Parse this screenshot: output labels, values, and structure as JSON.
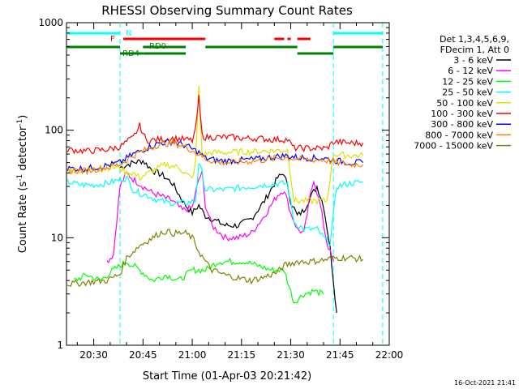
{
  "chart_data": {
    "type": "line",
    "title": "RHESSI Observing Summary Count Rates",
    "xlabel": "Start Time (01-Apr-03 20:21:42)",
    "ylabel_prefix": "Count Rate (s",
    "ylabel_exp": "-1",
    "ylabel_mid": " detector",
    "ylabel_exp2": "-1",
    "ylabel_suffix": ")",
    "y_scale": "log",
    "ylim": [
      1,
      1000
    ],
    "xlim_minutes": [
      21.7,
      120
    ],
    "x_ticks": [
      {
        "label": "20:30",
        "minute": 30
      },
      {
        "label": "20:45",
        "minute": 45
      },
      {
        "label": "21:00",
        "minute": 60
      },
      {
        "label": "21:15",
        "minute": 75
      },
      {
        "label": "21:30",
        "minute": 90
      },
      {
        "label": "21:45",
        "minute": 105
      },
      {
        "label": "22:00",
        "minute": 120
      }
    ],
    "y_ticks": [
      {
        "label": "1",
        "value": 1
      },
      {
        "label": "10",
        "value": 10
      },
      {
        "label": "100",
        "value": 100
      },
      {
        "label": "1000",
        "value": 1000
      }
    ],
    "legend_header": [
      "Det 1,3,4,5,6,9,",
      "FDecim 1, Att 0"
    ],
    "series": [
      {
        "name": "3 - 6 keV",
        "color": "#000000",
        "points": [
          [
            38,
            45
          ],
          [
            42,
            50
          ],
          [
            45,
            52
          ],
          [
            48,
            42
          ],
          [
            51,
            38
          ],
          [
            54,
            32
          ],
          [
            56,
            25
          ],
          [
            58,
            20
          ],
          [
            60,
            17
          ],
          [
            62,
            20
          ],
          [
            64,
            16
          ],
          [
            66,
            15
          ],
          [
            70,
            13
          ],
          [
            74,
            13
          ],
          [
            78,
            15
          ],
          [
            82,
            22
          ],
          [
            86,
            36
          ],
          [
            88,
            40
          ],
          [
            90,
            22
          ],
          [
            92,
            16
          ],
          [
            94,
            18
          ],
          [
            96,
            24
          ],
          [
            98,
            30
          ],
          [
            100,
            20
          ],
          [
            102,
            8
          ],
          [
            104,
            2
          ]
        ]
      },
      {
        "name": "6 - 12 keV",
        "color": "#ff00ff",
        "points": [
          [
            34,
            6
          ],
          [
            36,
            7
          ],
          [
            38,
            30
          ],
          [
            40,
            40
          ],
          [
            42,
            35
          ],
          [
            45,
            30
          ],
          [
            48,
            26
          ],
          [
            51,
            24
          ],
          [
            54,
            22
          ],
          [
            57,
            18
          ],
          [
            60,
            19
          ],
          [
            62,
            35
          ],
          [
            63,
            40
          ],
          [
            64,
            20
          ],
          [
            66,
            13
          ],
          [
            70,
            10
          ],
          [
            74,
            10
          ],
          [
            78,
            11
          ],
          [
            82,
            16
          ],
          [
            86,
            25
          ],
          [
            88,
            28
          ],
          [
            90,
            17
          ],
          [
            92,
            12
          ],
          [
            94,
            11
          ],
          [
            96,
            25
          ],
          [
            97,
            35
          ],
          [
            99,
            20
          ],
          [
            101,
            9
          ],
          [
            103,
            6
          ]
        ]
      },
      {
        "name": "12 - 25 keV",
        "color": "#00ff00",
        "points": [
          [
            24,
            4
          ],
          [
            28,
            4.5
          ],
          [
            32,
            4
          ],
          [
            36,
            5
          ],
          [
            40,
            6
          ],
          [
            44,
            5
          ],
          [
            48,
            4
          ],
          [
            52,
            4.5
          ],
          [
            56,
            4
          ],
          [
            60,
            5
          ],
          [
            64,
            5
          ],
          [
            68,
            6
          ],
          [
            72,
            6
          ],
          [
            76,
            6
          ],
          [
            80,
            5.5
          ],
          [
            84,
            5
          ],
          [
            88,
            5
          ],
          [
            91,
            2.5
          ],
          [
            94,
            3
          ],
          [
            97,
            3.2
          ],
          [
            100,
            3
          ]
        ]
      },
      {
        "name": "25 - 50 keV",
        "color": "#00ffff",
        "points": [
          [
            22,
            33
          ],
          [
            26,
            31
          ],
          [
            30,
            31
          ],
          [
            34,
            32
          ],
          [
            37,
            34
          ],
          [
            40,
            36
          ],
          [
            42,
            28
          ],
          [
            44,
            26
          ],
          [
            46,
            25
          ],
          [
            50,
            22
          ],
          [
            54,
            21
          ],
          [
            58,
            21
          ],
          [
            61,
            22
          ],
          [
            62,
            50
          ],
          [
            63,
            40
          ],
          [
            64,
            28
          ],
          [
            66,
            28
          ],
          [
            70,
            28
          ],
          [
            74,
            29
          ],
          [
            78,
            30
          ],
          [
            82,
            31
          ],
          [
            86,
            32
          ],
          [
            89,
            32
          ],
          [
            91,
            14
          ],
          [
            94,
            12
          ],
          [
            96,
            12
          ],
          [
            98,
            12
          ],
          [
            100,
            10
          ],
          [
            102,
            9
          ],
          [
            104,
            30
          ],
          [
            108,
            32
          ],
          [
            112,
            33
          ]
        ]
      },
      {
        "name": "50 - 100 keV",
        "color": "#e0e000",
        "points": [
          [
            22,
            42
          ],
          [
            28,
            43
          ],
          [
            34,
            45
          ],
          [
            38,
            45
          ],
          [
            40,
            40
          ],
          [
            42,
            40
          ],
          [
            44,
            36
          ],
          [
            48,
            42
          ],
          [
            52,
            48
          ],
          [
            56,
            45
          ],
          [
            60,
            35
          ],
          [
            61,
            50
          ],
          [
            62,
            250
          ],
          [
            63,
            60
          ],
          [
            64,
            60
          ],
          [
            66,
            62
          ],
          [
            70,
            62
          ],
          [
            74,
            63
          ],
          [
            78,
            63
          ],
          [
            82,
            64
          ],
          [
            86,
            65
          ],
          [
            89,
            65
          ],
          [
            91,
            22
          ],
          [
            95,
            22
          ],
          [
            99,
            22
          ],
          [
            101,
            22
          ],
          [
            103,
            60
          ],
          [
            108,
            58
          ],
          [
            112,
            58
          ]
        ]
      },
      {
        "name": "100 - 300 keV",
        "color": "#ff0000",
        "points": [
          [
            22,
            66
          ],
          [
            28,
            64
          ],
          [
            34,
            66
          ],
          [
            38,
            70
          ],
          [
            40,
            78
          ],
          [
            42,
            85
          ],
          [
            44,
            110
          ],
          [
            46,
            80
          ],
          [
            50,
            82
          ],
          [
            54,
            84
          ],
          [
            58,
            82
          ],
          [
            60,
            80
          ],
          [
            61,
            100
          ],
          [
            62,
            200
          ],
          [
            63,
            90
          ],
          [
            64,
            86
          ],
          [
            68,
            86
          ],
          [
            72,
            86
          ],
          [
            76,
            84
          ],
          [
            80,
            84
          ],
          [
            84,
            82
          ],
          [
            89,
            82
          ],
          [
            91,
            68
          ],
          [
            95,
            68
          ],
          [
            99,
            68
          ],
          [
            101,
            68
          ],
          [
            103,
            78
          ],
          [
            108,
            76
          ],
          [
            112,
            76
          ]
        ]
      },
      {
        "name": "300 - 800 keV",
        "color": "#0000ff",
        "points": [
          [
            22,
            44
          ],
          [
            28,
            44
          ],
          [
            34,
            47
          ],
          [
            38,
            50
          ],
          [
            42,
            60
          ],
          [
            46,
            68
          ],
          [
            50,
            76
          ],
          [
            54,
            78
          ],
          [
            58,
            72
          ],
          [
            62,
            62
          ],
          [
            64,
            55
          ],
          [
            68,
            52
          ],
          [
            72,
            52
          ],
          [
            76,
            53
          ],
          [
            80,
            54
          ],
          [
            84,
            56
          ],
          [
            88,
            58
          ],
          [
            92,
            56
          ],
          [
            96,
            55
          ],
          [
            100,
            55
          ],
          [
            104,
            52
          ],
          [
            108,
            50
          ],
          [
            112,
            50
          ]
        ]
      },
      {
        "name": "800 - 7000 keV",
        "color": "#ff8000",
        "points": [
          [
            22,
            42
          ],
          [
            28,
            42
          ],
          [
            34,
            45
          ],
          [
            38,
            48
          ],
          [
            42,
            58
          ],
          [
            46,
            66
          ],
          [
            50,
            74
          ],
          [
            54,
            76
          ],
          [
            58,
            70
          ],
          [
            62,
            60
          ],
          [
            64,
            54
          ],
          [
            68,
            50
          ],
          [
            72,
            50
          ],
          [
            76,
            51
          ],
          [
            80,
            52
          ],
          [
            84,
            54
          ],
          [
            88,
            56
          ],
          [
            92,
            54
          ],
          [
            96,
            53
          ],
          [
            100,
            53
          ],
          [
            104,
            50
          ],
          [
            108,
            48
          ],
          [
            112,
            48
          ]
        ]
      },
      {
        "name": "7000 - 15000 keV",
        "color": "#808000",
        "points": [
          [
            22,
            3.7
          ],
          [
            26,
            3.8
          ],
          [
            30,
            3.9
          ],
          [
            34,
            4.0
          ],
          [
            38,
            4.6
          ],
          [
            40,
            6.5
          ],
          [
            44,
            8.5
          ],
          [
            48,
            10
          ],
          [
            50,
            11
          ],
          [
            52,
            11.5
          ],
          [
            54,
            11
          ],
          [
            58,
            11
          ],
          [
            60,
            10
          ],
          [
            62,
            7.5
          ],
          [
            64,
            6
          ],
          [
            66,
            5
          ],
          [
            70,
            4.5
          ],
          [
            74,
            4.2
          ],
          [
            78,
            4.0
          ],
          [
            82,
            4.3
          ],
          [
            86,
            4.8
          ],
          [
            88,
            5.5
          ],
          [
            92,
            6
          ],
          [
            96,
            6
          ],
          [
            100,
            6.2
          ],
          [
            104,
            6.5
          ],
          [
            108,
            6.5
          ],
          [
            112,
            6.3
          ]
        ]
      }
    ],
    "status_bars": [
      {
        "label": "N",
        "color": "#00ffff",
        "segments": [
          [
            21.7,
            38
          ],
          [
            103,
            118
          ]
        ]
      },
      {
        "label": "F",
        "color": "#ff0000",
        "segments": [
          [
            39,
            64
          ],
          [
            85,
            88
          ],
          [
            89,
            90
          ],
          [
            92,
            96
          ]
        ]
      },
      {
        "label": "RD0",
        "color": "#008000",
        "segments": [
          [
            21.7,
            38
          ],
          [
            45,
            58
          ],
          [
            64,
            92
          ],
          [
            103,
            118
          ]
        ]
      },
      {
        "label": "RD4",
        "color": "#008000",
        "segments": [
          [
            38,
            45
          ],
          [
            45,
            58
          ],
          [
            92,
            103
          ]
        ]
      }
    ],
    "saa_lines_minutes": [
      38,
      103,
      118
    ],
    "grid": false
  },
  "footer": {
    "timestamp": "16-Oct-2021 21:41"
  }
}
